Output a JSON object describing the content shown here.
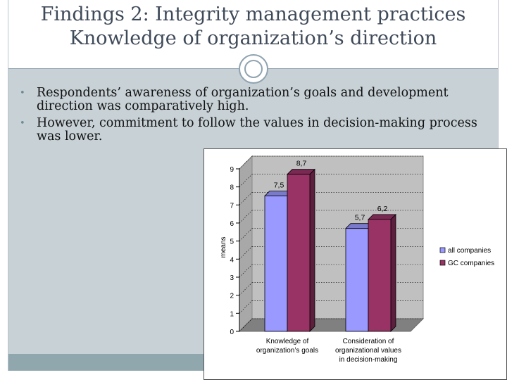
{
  "slide": {
    "title_line1": "Findings 2: Integrity management practices",
    "title_line2": "Knowledge of organization’s direction",
    "bullets": [
      "Respondents’ awareness of organization’s goals and development direction was comparatively high.",
      "However, commitment to follow the values in decision-making process was lower."
    ]
  },
  "chart_data": {
    "type": "bar",
    "ylabel": "means",
    "ylim": [
      0,
      9
    ],
    "yticks": [
      "0",
      "1",
      "2",
      "3",
      "4",
      "5",
      "6",
      "7",
      "8",
      "9"
    ],
    "categories": [
      [
        "Knowledge of",
        "organization’s goals"
      ],
      [
        "Consideration of",
        "organizational values",
        "in decision-making"
      ]
    ],
    "series": [
      {
        "name": "all companies",
        "values": [
          7.5,
          5.7
        ],
        "labels": [
          "7,5",
          "5,7"
        ],
        "color": "#9999ff"
      },
      {
        "name": "GC companies",
        "values": [
          8.7,
          6.2
        ],
        "labels": [
          "8,7",
          "6,2"
        ],
        "color": "#993366"
      }
    ],
    "legend": "right",
    "grid": true
  }
}
